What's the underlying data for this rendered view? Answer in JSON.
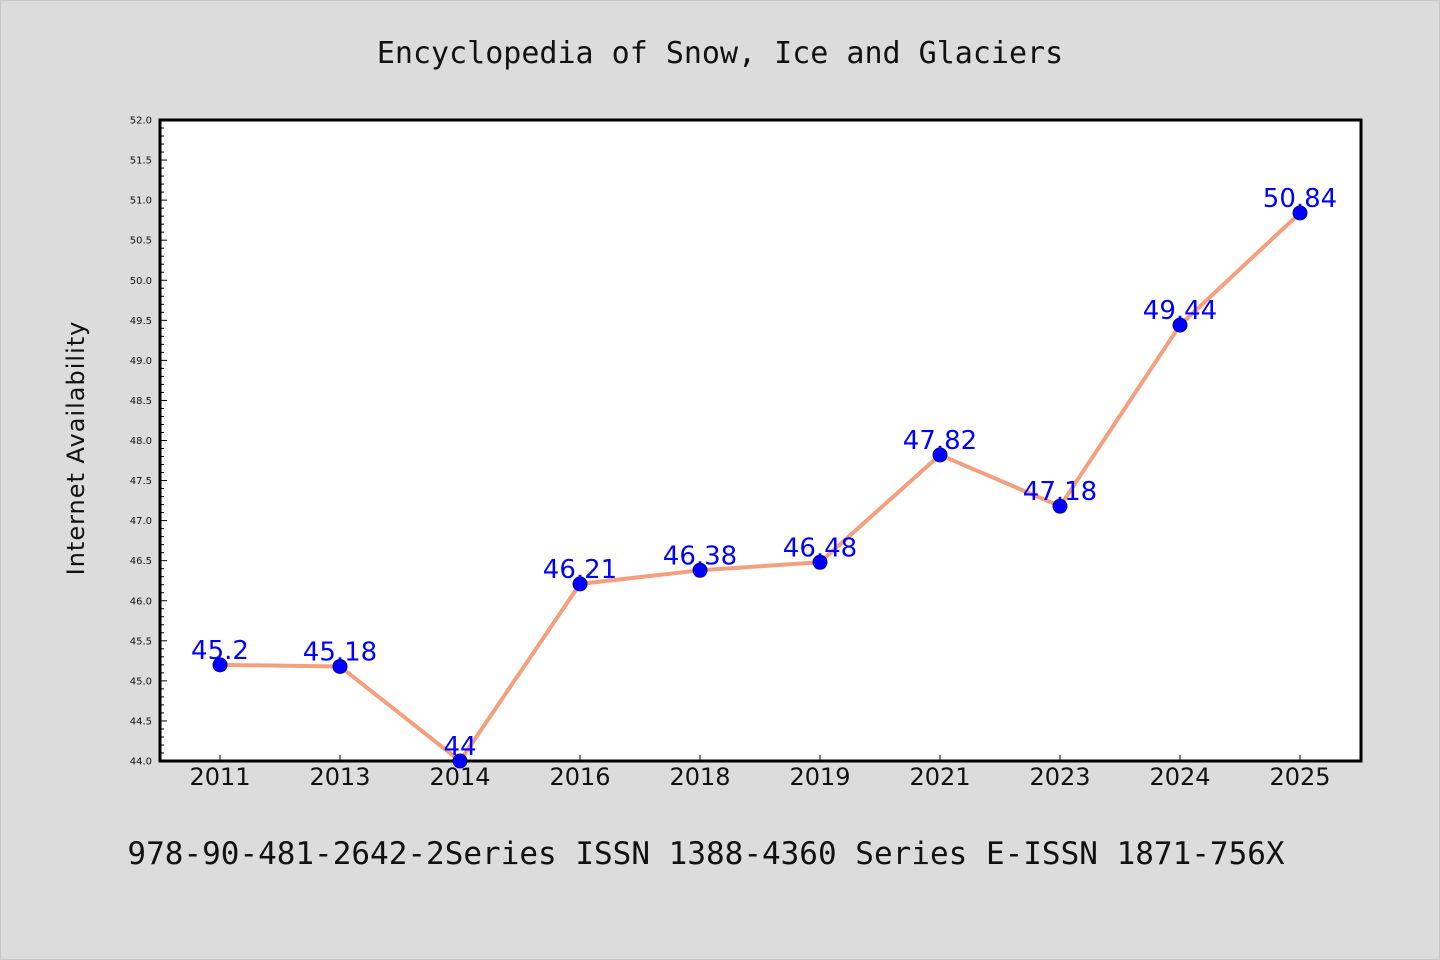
{
  "chart_data": {
    "type": "line",
    "title": "Encyclopedia of Snow, Ice and Glaciers",
    "ylabel": "Internet Availability",
    "xlabel": "",
    "footer": "978-90-481-2642-2Series ISSN 1388-4360 Series E-ISSN 1871-756X",
    "categories": [
      "2011",
      "2013",
      "2014",
      "2016",
      "2018",
      "2019",
      "2021",
      "2023",
      "2024",
      "2025"
    ],
    "values": [
      45.2,
      45.18,
      44,
      46.21,
      46.38,
      46.48,
      47.82,
      47.18,
      49.44,
      50.84
    ],
    "data_labels": [
      "45.2",
      "45.18",
      "44",
      "46.21",
      "46.38",
      "46.48",
      "47.82",
      "47.18",
      "49.44",
      "50.84"
    ],
    "ylim": [
      44.0,
      52.0
    ],
    "yticks": [
      44.0,
      44.5,
      45.0,
      45.5,
      46.0,
      46.5,
      47.0,
      47.5,
      48.0,
      48.5,
      49.0,
      49.5,
      50.0,
      50.5,
      51.0,
      51.5,
      52.0
    ],
    "ytick_labels": [
      "44.0",
      "44.5",
      "45.0",
      "45.5",
      "46.0",
      "46.5",
      "47.0",
      "47.5",
      "48.0",
      "48.5",
      "49.0",
      "49.5",
      "50.0",
      "50.5",
      "51.0",
      "51.5",
      "52.0"
    ],
    "grid": false,
    "colors": {
      "line": "#f4a07f",
      "marker": "#0000ff",
      "data_label": "#0000ff",
      "background": "#dcdcdc",
      "plot_area": "#ffffff"
    }
  }
}
